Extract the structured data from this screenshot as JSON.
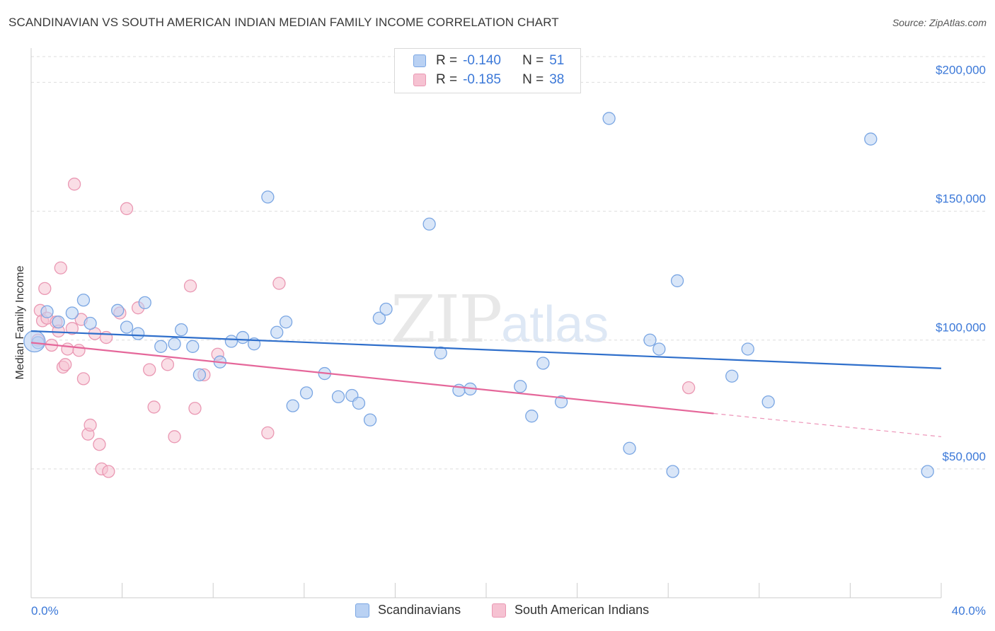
{
  "title": "SCANDINAVIAN VS SOUTH AMERICAN INDIAN MEDIAN FAMILY INCOME CORRELATION CHART",
  "source": "Source: ZipAtlas.com",
  "watermark": {
    "part1": "ZIP",
    "part2": "atlas"
  },
  "colors": {
    "blue_fill": "#b9d1f3",
    "blue_stroke": "#7aa6e3",
    "blue_line": "#2f6fcb",
    "pink_fill": "#f6c2d2",
    "pink_stroke": "#ea98b3",
    "pink_line": "#e5679a",
    "grid": "#dddddd",
    "label_blue": "#3b78d8"
  },
  "legend": {
    "rows": [
      {
        "r_label": "R =",
        "r_value": "-0.140",
        "n_label": "N =",
        "n_value": "51",
        "color": "#b9d1f3",
        "border": "#7aa6e3"
      },
      {
        "r_label": "R =",
        "r_value": "-0.185",
        "n_label": "N =",
        "n_value": "38",
        "color": "#f6c2d2",
        "border": "#ea98b3"
      }
    ]
  },
  "chart_data": {
    "type": "scatter",
    "title": "SCANDINAVIAN VS SOUTH AMERICAN INDIAN MEDIAN FAMILY INCOME CORRELATION CHART",
    "xlabel": "",
    "ylabel": "Median Family Income",
    "xlim": [
      0,
      40
    ],
    "ylim": [
      0,
      210000
    ],
    "x_tick_labels": [
      {
        "value": 0,
        "label": "0.0%"
      },
      {
        "value": 40,
        "label": "40.0%"
      }
    ],
    "y_ticks": [
      {
        "value": 50000,
        "label": "$50,000"
      },
      {
        "value": 100000,
        "label": "$100,000"
      },
      {
        "value": 150000,
        "label": "$150,000"
      },
      {
        "value": 200000,
        "label": "$200,000"
      }
    ],
    "grid": true,
    "series": [
      {
        "name": "Scandinavians",
        "R": -0.14,
        "N": 51,
        "trend": {
          "x": [
            0,
            40
          ],
          "y": [
            103500,
            89000
          ]
        },
        "points": [
          [
            0.3,
            99000
          ],
          [
            0.7,
            111000
          ],
          [
            1.2,
            107000
          ],
          [
            1.8,
            110500
          ],
          [
            2.3,
            115500
          ],
          [
            2.6,
            106500
          ],
          [
            3.8,
            111500
          ],
          [
            4.2,
            105000
          ],
          [
            4.7,
            102500
          ],
          [
            5.0,
            114500
          ],
          [
            5.7,
            97500
          ],
          [
            6.3,
            98500
          ],
          [
            6.6,
            104000
          ],
          [
            7.1,
            97500
          ],
          [
            7.4,
            86500
          ],
          [
            8.3,
            91500
          ],
          [
            8.8,
            99500
          ],
          [
            9.3,
            101000
          ],
          [
            9.8,
            98500
          ],
          [
            10.4,
            155500
          ],
          [
            10.8,
            103000
          ],
          [
            11.2,
            107000
          ],
          [
            11.5,
            74500
          ],
          [
            12.1,
            79500
          ],
          [
            12.9,
            87000
          ],
          [
            13.5,
            78000
          ],
          [
            14.1,
            78500
          ],
          [
            14.4,
            75500
          ],
          [
            14.9,
            69000
          ],
          [
            15.3,
            108500
          ],
          [
            15.6,
            112000
          ],
          [
            17.5,
            145000
          ],
          [
            18.0,
            95000
          ],
          [
            18.8,
            80500
          ],
          [
            19.3,
            81000
          ],
          [
            21.5,
            82000
          ],
          [
            22.0,
            70500
          ],
          [
            22.5,
            91000
          ],
          [
            23.3,
            76000
          ],
          [
            25.4,
            186000
          ],
          [
            26.3,
            58000
          ],
          [
            27.2,
            100000
          ],
          [
            27.6,
            96500
          ],
          [
            28.2,
            49000
          ],
          [
            28.4,
            123000
          ],
          [
            30.8,
            86000
          ],
          [
            31.5,
            96500
          ],
          [
            32.4,
            76000
          ],
          [
            36.9,
            178000
          ],
          [
            39.4,
            49000
          ],
          [
            0.15,
            99500
          ]
        ]
      },
      {
        "name": "South American Indians",
        "R": -0.185,
        "N": 38,
        "trend": {
          "x": [
            0,
            30
          ],
          "y": [
            99000,
            71500
          ]
        },
        "trend_dashed": {
          "x": [
            30,
            40
          ],
          "y": [
            71500,
            62500
          ]
        },
        "points": [
          [
            0.3,
            100000
          ],
          [
            0.4,
            111500
          ],
          [
            0.5,
            107500
          ],
          [
            0.6,
            120000
          ],
          [
            0.7,
            108500
          ],
          [
            0.9,
            98000
          ],
          [
            1.1,
            107000
          ],
          [
            1.2,
            103500
          ],
          [
            1.3,
            128000
          ],
          [
            1.4,
            89500
          ],
          [
            1.5,
            90500
          ],
          [
            1.6,
            96500
          ],
          [
            1.8,
            104500
          ],
          [
            1.9,
            160500
          ],
          [
            2.1,
            96000
          ],
          [
            2.2,
            108000
          ],
          [
            2.3,
            85000
          ],
          [
            2.5,
            63500
          ],
          [
            2.6,
            67000
          ],
          [
            2.8,
            102500
          ],
          [
            3.0,
            59500
          ],
          [
            3.1,
            50000
          ],
          [
            3.3,
            101000
          ],
          [
            3.4,
            49000
          ],
          [
            3.9,
            110500
          ],
          [
            4.2,
            151000
          ],
          [
            4.7,
            112500
          ],
          [
            5.2,
            88500
          ],
          [
            5.4,
            74000
          ],
          [
            6.0,
            90500
          ],
          [
            6.3,
            62500
          ],
          [
            7.0,
            121000
          ],
          [
            7.2,
            73500
          ],
          [
            7.6,
            86500
          ],
          [
            8.2,
            94500
          ],
          [
            10.4,
            64000
          ],
          [
            10.9,
            122000
          ],
          [
            28.9,
            81500
          ]
        ]
      }
    ]
  }
}
